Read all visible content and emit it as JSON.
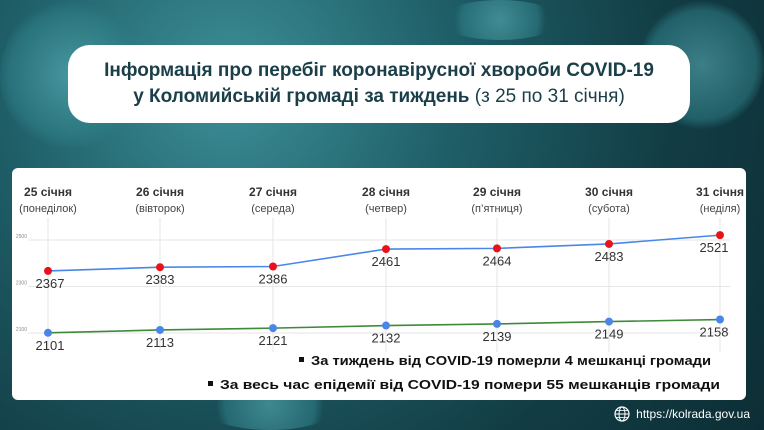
{
  "title": {
    "line1": "Інформація про перебіг коронавірусної хвороби COVID-19",
    "line2_bold": "у Коломийській громаді за тиждень",
    "line2_thin": "(з 25 по 31 січня)"
  },
  "chart_data": {
    "type": "line",
    "categories": [
      "25 січня",
      "26 січня",
      "27 січня",
      "28 січня",
      "29 січня",
      "30 січня",
      "31 січня"
    ],
    "weekdays": [
      "(понеділок)",
      "(вівторок)",
      "(середа)",
      "(четвер)",
      "(п’ятниця)",
      "(субота)",
      "(неділя)"
    ],
    "series": [
      {
        "values": [
          2367,
          2383,
          2386,
          2461,
          2464,
          2483,
          2521
        ],
        "line_color": "#4a86e8",
        "marker_color": "#e8121a"
      },
      {
        "values": [
          2101,
          2113,
          2121,
          2132,
          2139,
          2149,
          2158
        ],
        "line_color": "#3f8a3a",
        "marker_color": "#4a86e8"
      }
    ],
    "yticks": [
      2100,
      2300,
      2500
    ],
    "ylim": [
      2100,
      2500
    ],
    "grid": true
  },
  "notes": [
    "За тиждень від COVID-19 померли 4 мешканці громади",
    "За весь час епідемії від COVID-19 помери 55 мешканців громади"
  ],
  "footer": {
    "url": "https://kolrada.gov.ua",
    "icon": "globe-icon"
  }
}
